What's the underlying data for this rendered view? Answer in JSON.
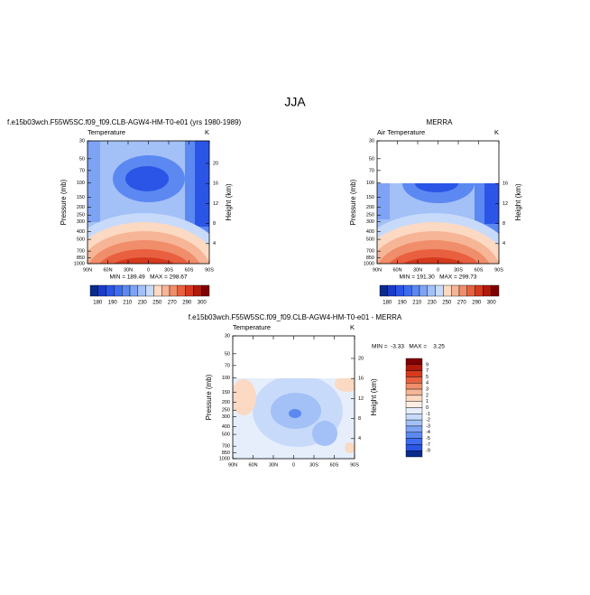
{
  "title": "JJA",
  "chart_data": [
    {
      "type": "contour",
      "title": "f.e15b03wch.F55W5SC.f09_f09.CLB-AGW4-HM-T0-e01 (yrs 1980-1989)",
      "subtitle": "Temperature",
      "units": "K",
      "ylabel": "Pressure (mb)",
      "y2label": "Height (km)",
      "log_y": true,
      "ylim": [
        1000,
        30
      ],
      "yticks": [
        30,
        50,
        70,
        100,
        150,
        200,
        250,
        300,
        400,
        500,
        700,
        850,
        1000
      ],
      "y2lim": [
        0,
        24.5
      ],
      "y2ticks": [
        4,
        8,
        12,
        16,
        20
      ],
      "xlim": [
        90,
        -90
      ],
      "xticks": [
        {
          "value": 90,
          "label": "90N"
        },
        {
          "value": 60,
          "label": "60N"
        },
        {
          "value": 30,
          "label": "30N"
        },
        0,
        {
          "value": -30,
          "label": "30S"
        },
        {
          "value": -60,
          "label": "60S"
        },
        {
          "value": -90,
          "label": "90S"
        }
      ],
      "minmax": "MIN = 189.49   MAX = 298.67",
      "colorbar": {
        "orientation": "horizontal",
        "colors": [
          "#0a2a8c",
          "#1a3cc8",
          "#2a55e6",
          "#3d6cf0",
          "#5c88f2",
          "#7ea3f4",
          "#a3c0f7",
          "#c8dafa",
          "#fbd9c2",
          "#f6b596",
          "#f08d6a",
          "#e86040",
          "#d63a1e",
          "#b01a0a",
          "#7f0000"
        ],
        "labels": [
          180,
          190,
          210,
          230,
          250,
          270,
          290,
          300
        ]
      }
    },
    {
      "type": "contour",
      "title": "MERRA",
      "subtitle": "Air Temperature",
      "units": "K",
      "ylabel": "Pressure (mb)",
      "y2label": "Height (km)",
      "log_y": true,
      "ylim": [
        1000,
        30
      ],
      "yticks": [
        30,
        50,
        70,
        100,
        150,
        200,
        250,
        300,
        400,
        500,
        700,
        850,
        1000
      ],
      "y2lim": [
        0,
        24.5
      ],
      "y2ticks": [
        4,
        8,
        12,
        16
      ],
      "xlim": [
        90,
        -90
      ],
      "xticks": [
        {
          "value": 90,
          "label": "90N"
        },
        {
          "value": 60,
          "label": "60N"
        },
        {
          "value": 30,
          "label": "30N"
        },
        0,
        {
          "value": -30,
          "label": "30S"
        },
        {
          "value": -60,
          "label": "60S"
        },
        {
          "value": -90,
          "label": "90S"
        }
      ],
      "minmax": "MIN = 191.30   MAX = 299.73",
      "colorbar": {
        "orientation": "horizontal",
        "colors": [
          "#0a2a8c",
          "#1a3cc8",
          "#2a55e6",
          "#3d6cf0",
          "#5c88f2",
          "#7ea3f4",
          "#a3c0f7",
          "#c8dafa",
          "#fbd9c2",
          "#f6b596",
          "#f08d6a",
          "#e86040",
          "#d63a1e",
          "#b01a0a",
          "#7f0000"
        ],
        "labels": [
          180,
          190,
          210,
          230,
          250,
          270,
          290,
          300
        ]
      }
    },
    {
      "type": "contour",
      "title": "f.e15b03wch.F55W5SC.f09_f09.CLB-AGW4-HM-T0-e01 - MERRA",
      "subtitle": "Temperature",
      "units": "K",
      "ylabel": "Pressure (mb)",
      "y2label": "Height (km)",
      "log_y": true,
      "ylim": [
        1000,
        30
      ],
      "yticks": [
        30,
        50,
        70,
        100,
        150,
        200,
        250,
        300,
        400,
        500,
        700,
        850,
        1000
      ],
      "y2lim": [
        0,
        24.5
      ],
      "y2ticks": [
        4,
        8,
        12,
        16,
        20
      ],
      "xlim": [
        90,
        -90
      ],
      "xticks": [
        {
          "value": 90,
          "label": "90N"
        },
        {
          "value": 60,
          "label": "60N"
        },
        {
          "value": 30,
          "label": "30N"
        },
        0,
        {
          "value": -30,
          "label": "30S"
        },
        {
          "value": -60,
          "label": "60S"
        },
        {
          "value": -90,
          "label": "90S"
        }
      ],
      "minmax": "MIN =  -3.33   MAX =    3.25",
      "colorbar": {
        "orientation": "vertical",
        "colors": [
          "#7f0000",
          "#b01a0a",
          "#d63a1e",
          "#e86040",
          "#f08d6a",
          "#f6b596",
          "#fbd9c2",
          "#fdeee4",
          "#e6eefc",
          "#c8dafa",
          "#a3c0f7",
          "#7ea3f4",
          "#5c88f2",
          "#3d6cf0",
          "#2a55e6",
          "#0a2a8c"
        ],
        "labels": [
          9,
          7,
          5,
          4,
          3,
          2,
          1,
          0,
          -1,
          -2,
          -3,
          -4,
          -5,
          -7,
          -9
        ]
      }
    }
  ]
}
